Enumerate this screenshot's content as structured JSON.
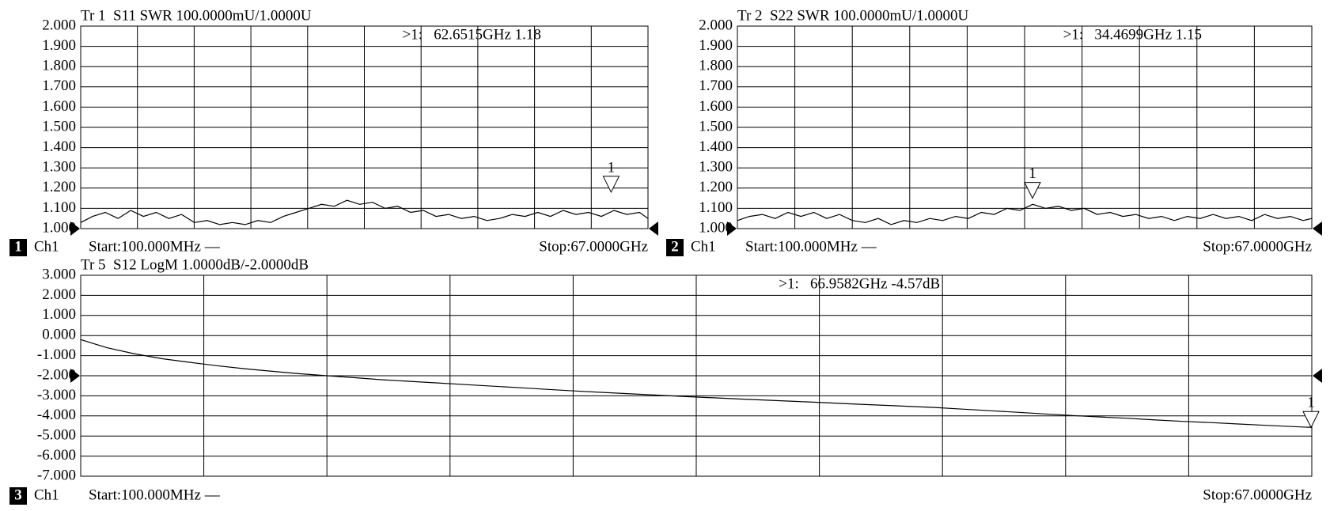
{
  "chart_data": [
    {
      "type": "line",
      "title": "Tr 1  S11 SWR 100.0000mU/1.0000U",
      "annotation": ">1:   62.6515GHz 1.18",
      "channel": "1",
      "channel_name": "Ch1",
      "start": "Start:100.000MHz —",
      "stop": "Stop:67.0000GHz",
      "x": [
        0.1,
        1.5,
        3,
        4.5,
        6,
        7.5,
        9,
        10.5,
        12,
        13.5,
        15,
        16.5,
        18,
        19.5,
        21,
        22.5,
        24,
        25.5,
        27,
        28.5,
        30,
        31.5,
        33,
        34.5,
        36,
        37.5,
        39,
        40.5,
        42,
        43.5,
        45,
        46.5,
        48,
        49.5,
        51,
        52.5,
        54,
        55.5,
        57,
        58.5,
        60,
        61.5,
        63,
        64.5,
        66,
        67
      ],
      "values": [
        1.03,
        1.06,
        1.08,
        1.05,
        1.09,
        1.06,
        1.08,
        1.05,
        1.07,
        1.03,
        1.04,
        1.02,
        1.03,
        1.02,
        1.04,
        1.03,
        1.06,
        1.08,
        1.1,
        1.12,
        1.11,
        1.14,
        1.12,
        1.13,
        1.1,
        1.11,
        1.08,
        1.09,
        1.06,
        1.07,
        1.05,
        1.06,
        1.04,
        1.05,
        1.07,
        1.06,
        1.08,
        1.06,
        1.09,
        1.07,
        1.08,
        1.06,
        1.09,
        1.07,
        1.08,
        1.05
      ],
      "markers": [
        {
          "label": "1",
          "x": 62.6515,
          "value": 1.18
        }
      ],
      "reference_level": 1,
      "xlim": [
        0.1,
        67
      ],
      "ylim": [
        1,
        2
      ],
      "yticks": [
        {
          "value": 2,
          "label": "2.000"
        },
        {
          "value": 1.9,
          "label": "1.900"
        },
        {
          "value": 1.8,
          "label": "1.800"
        },
        {
          "value": 1.7,
          "label": "1.700"
        },
        {
          "value": 1.6,
          "label": "1.600"
        },
        {
          "value": 1.5,
          "label": "1.500"
        },
        {
          "value": 1.4,
          "label": "1.400"
        },
        {
          "value": 1.3,
          "label": "1.300"
        },
        {
          "value": 1.2,
          "label": "1.200"
        },
        {
          "value": 1.1,
          "label": "1.100"
        },
        {
          "value": 1,
          "label": "1.000"
        }
      ],
      "grid": true
    },
    {
      "type": "line",
      "title": "Tr 2  S22 SWR 100.0000mU/1.0000U",
      "annotation": ">1:   34.4699GHz 1.15",
      "channel": "2",
      "channel_name": "Ch1",
      "start": "Start:100.000MHz —",
      "stop": "Stop:67.0000GHz",
      "x": [
        0.1,
        1.5,
        3,
        4.5,
        6,
        7.5,
        9,
        10.5,
        12,
        13.5,
        15,
        16.5,
        18,
        19.5,
        21,
        22.5,
        24,
        25.5,
        27,
        28.5,
        30,
        31.5,
        33,
        34.5,
        36,
        37.5,
        39,
        40.5,
        42,
        43.5,
        45,
        46.5,
        48,
        49.5,
        51,
        52.5,
        54,
        55.5,
        57,
        58.5,
        60,
        61.5,
        63,
        64.5,
        66,
        67
      ],
      "values": [
        1.04,
        1.06,
        1.07,
        1.05,
        1.08,
        1.06,
        1.08,
        1.05,
        1.07,
        1.04,
        1.03,
        1.05,
        1.02,
        1.04,
        1.03,
        1.05,
        1.04,
        1.06,
        1.05,
        1.08,
        1.07,
        1.1,
        1.09,
        1.12,
        1.1,
        1.11,
        1.09,
        1.1,
        1.07,
        1.08,
        1.06,
        1.07,
        1.05,
        1.06,
        1.04,
        1.06,
        1.05,
        1.07,
        1.05,
        1.06,
        1.04,
        1.07,
        1.05,
        1.06,
        1.04,
        1.05
      ],
      "markers": [
        {
          "label": "1",
          "x": 34.4699,
          "value": 1.15
        }
      ],
      "reference_level": 1,
      "xlim": [
        0.1,
        67
      ],
      "ylim": [
        1,
        2
      ],
      "yticks": [
        {
          "value": 2,
          "label": "2.000"
        },
        {
          "value": 1.9,
          "label": "1.900"
        },
        {
          "value": 1.8,
          "label": "1.800"
        },
        {
          "value": 1.7,
          "label": "1.700"
        },
        {
          "value": 1.6,
          "label": "1.600"
        },
        {
          "value": 1.5,
          "label": "1.500"
        },
        {
          "value": 1.4,
          "label": "1.400"
        },
        {
          "value": 1.3,
          "label": "1.300"
        },
        {
          "value": 1.2,
          "label": "1.200"
        },
        {
          "value": 1.1,
          "label": "1.100"
        },
        {
          "value": 1,
          "label": "1.000"
        }
      ],
      "grid": true
    },
    {
      "type": "line",
      "title": "Tr 5  S12 LogM 1.0000dB/-2.0000dB",
      "annotation": ">1:   66.9582GHz -4.57dB",
      "channel": "3",
      "channel_name": "Ch1",
      "start": "Start:100.000MHz —",
      "stop": "Stop:67.0000GHz",
      "x": [
        0.1,
        1.5,
        3,
        4.5,
        6,
        7.5,
        9,
        10.5,
        12,
        13.5,
        15,
        16.5,
        18,
        19.5,
        21,
        22.5,
        24,
        25.5,
        27,
        28.5,
        30,
        31.5,
        33,
        34.5,
        36,
        37.5,
        39,
        40.5,
        42,
        43.5,
        45,
        46.5,
        48,
        49.5,
        51,
        52.5,
        54,
        55.5,
        57,
        58.5,
        60,
        61.5,
        63,
        64.5,
        66,
        67
      ],
      "values": [
        -0.2,
        -0.6,
        -0.9,
        -1.15,
        -1.33,
        -1.5,
        -1.65,
        -1.78,
        -1.9,
        -2.0,
        -2.1,
        -2.2,
        -2.28,
        -2.36,
        -2.44,
        -2.52,
        -2.6,
        -2.68,
        -2.76,
        -2.83,
        -2.9,
        -2.97,
        -3.04,
        -3.1,
        -3.16,
        -3.22,
        -3.28,
        -3.34,
        -3.4,
        -3.46,
        -3.52,
        -3.58,
        -3.66,
        -3.74,
        -3.82,
        -3.9,
        -3.98,
        -4.05,
        -4.12,
        -4.2,
        -4.27,
        -4.33,
        -4.4,
        -4.47,
        -4.53,
        -4.57
      ],
      "markers": [
        {
          "label": "1",
          "x": 66.9582,
          "value": -4.57
        }
      ],
      "reference_level": -2,
      "xlim": [
        0.1,
        67
      ],
      "ylim": [
        -7,
        3
      ],
      "yticks": [
        {
          "value": 3,
          "label": "3.000"
        },
        {
          "value": 2,
          "label": "2.000"
        },
        {
          "value": 1,
          "label": "1.000"
        },
        {
          "value": 0,
          "label": "0.000"
        },
        {
          "value": -1,
          "label": "-1.000"
        },
        {
          "value": -2,
          "label": "-2.000"
        },
        {
          "value": -3,
          "label": "-3.000"
        },
        {
          "value": -4,
          "label": "-4.000"
        },
        {
          "value": -5,
          "label": "-5.000"
        },
        {
          "value": -6,
          "label": "-6.000"
        },
        {
          "value": -7,
          "label": "-7.000"
        }
      ],
      "grid": true
    }
  ]
}
